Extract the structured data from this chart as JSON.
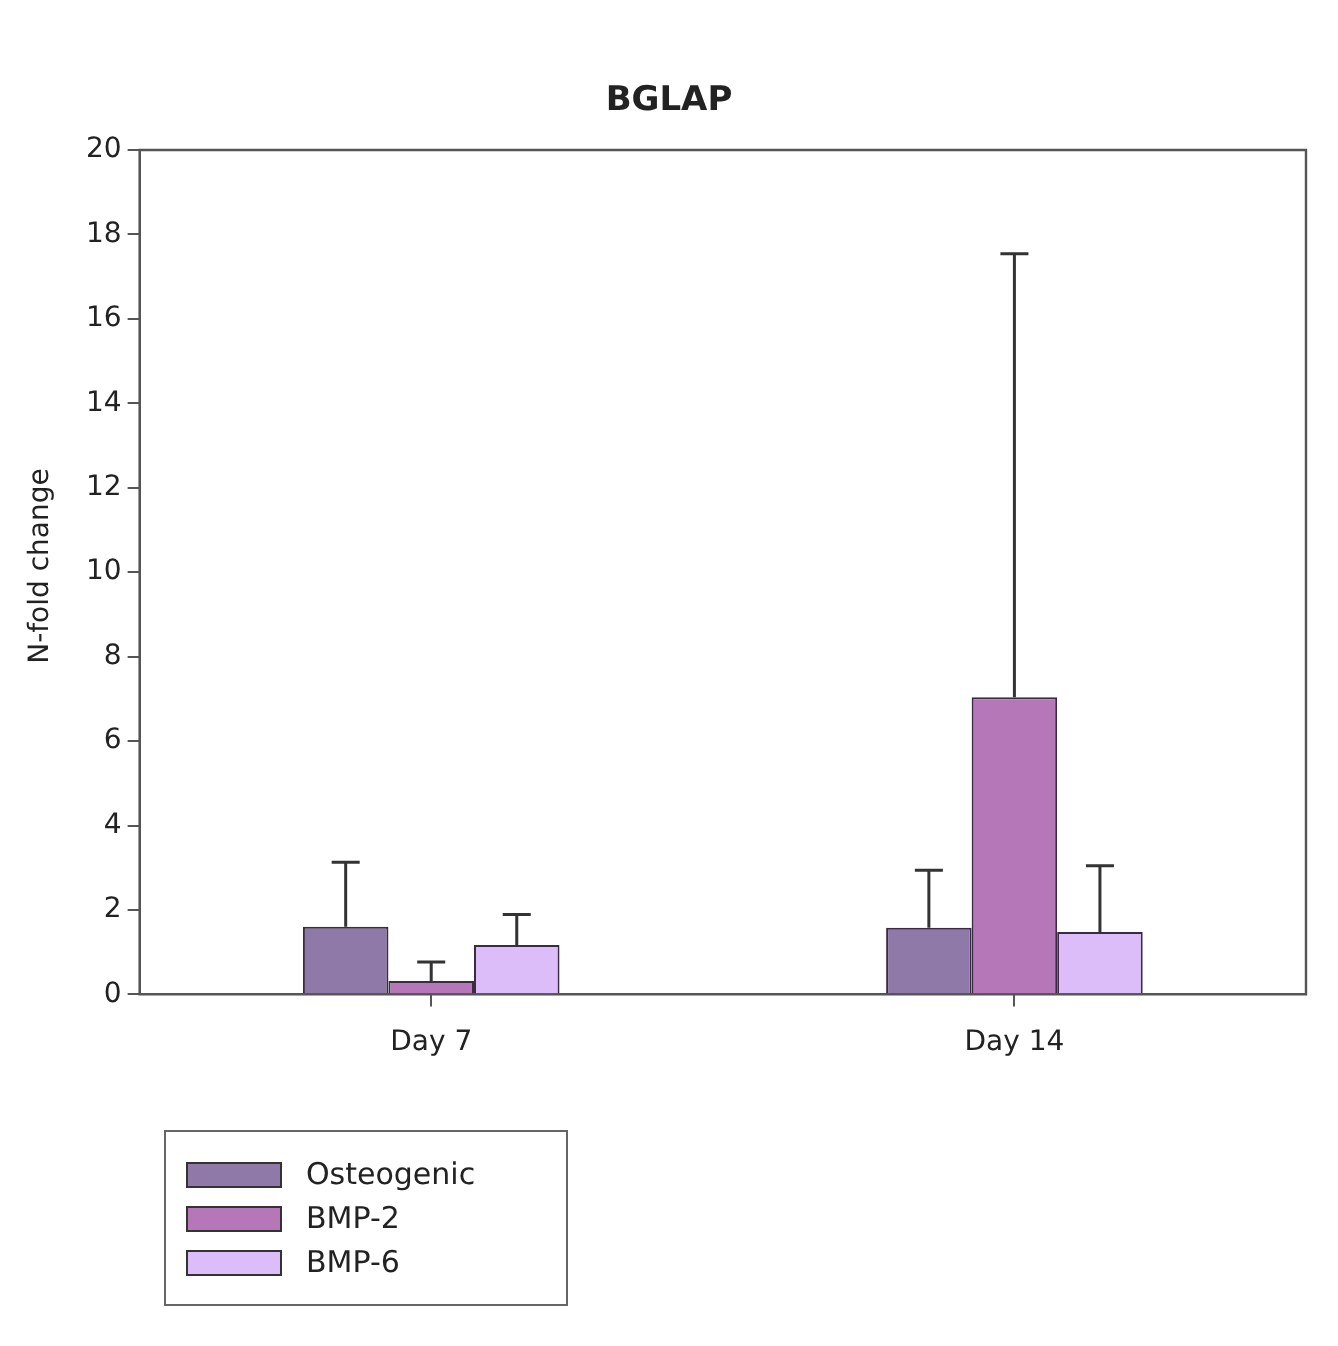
{
  "chart_data": {
    "type": "bar",
    "title": "BGLAP",
    "ylabel": "N-fold change",
    "categories": [
      "Day 7",
      "Day 14"
    ],
    "series": [
      {
        "name": "Osteogenic",
        "color": "#8e79a8",
        "values": [
          1.6,
          1.58
        ],
        "errors": [
          [
            1.6,
            3.13
          ],
          [
            1.58,
            2.94
          ]
        ]
      },
      {
        "name": "BMP-2",
        "color": "#b677b9",
        "values": [
          0.32,
          7.04
        ],
        "errors": [
          [
            0.32,
            0.77
          ],
          [
            7.04,
            17.54
          ]
        ]
      },
      {
        "name": "BMP-6",
        "color": "#dcbdf9",
        "values": [
          1.17,
          1.48
        ],
        "errors": [
          [
            1.17,
            1.89
          ],
          [
            1.48,
            3.05
          ]
        ]
      }
    ],
    "ylim": [
      0,
      20
    ],
    "yticks": [
      0,
      2,
      4,
      6,
      8,
      10,
      12,
      14,
      16,
      18,
      20
    ],
    "grid": false,
    "legend": "bottom left"
  }
}
